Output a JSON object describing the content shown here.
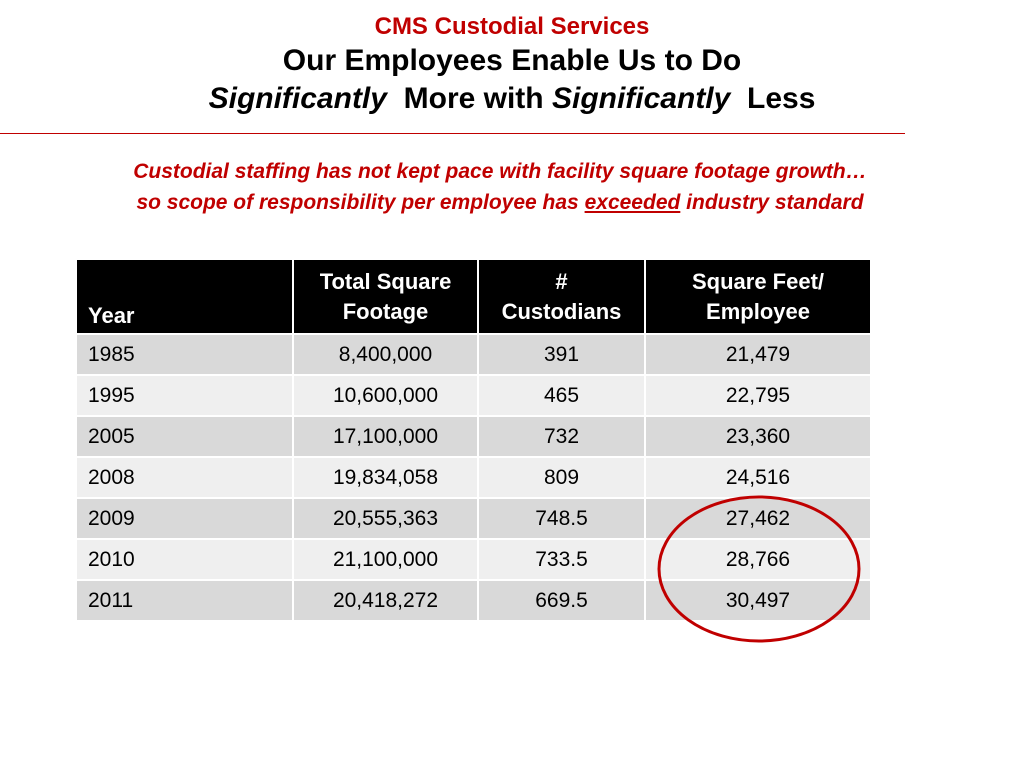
{
  "header": {
    "org_title": "CMS Custodial Services",
    "title_line1": "Our Employees Enable Us to Do",
    "title_line2_em1": "Significantly",
    "title_line2_mid": "More with",
    "title_line2_em2": "Significantly",
    "title_line2_end": "Less"
  },
  "subtitle": {
    "line1": "Custodial staffing has not kept pace with facility square footage growth…",
    "line2_before": "so scope of responsibility per employee has",
    "line2_underlined": "exceeded",
    "line2_after": "industry standard"
  },
  "colors": {
    "accent_red": "#c00000",
    "header_bg": "#000000",
    "row_dark": "#d9d9d9",
    "row_light": "#efefef"
  },
  "table": {
    "headers": [
      {
        "line1": "Year",
        "line2": ""
      },
      {
        "line1": "Total Square",
        "line2": "Footage"
      },
      {
        "line1": "#",
        "line2": "Custodians"
      },
      {
        "line1": "Square Feet/",
        "line2": "Employee"
      }
    ],
    "rows": [
      [
        "1985",
        "8,400,000",
        "391",
        "21,479"
      ],
      [
        "1995",
        "10,600,000",
        "465",
        "22,795"
      ],
      [
        "2005",
        "17,100,000",
        "732",
        "23,360"
      ],
      [
        "2008",
        "19,834,058",
        "809",
        "24,516"
      ],
      [
        "2009",
        "20,555,363",
        "748.5",
        "27,462"
      ],
      [
        "2010",
        "21,100,000",
        "733.5",
        "28,766"
      ],
      [
        "2011",
        "20,418,272",
        "669.5",
        "30,497"
      ]
    ],
    "highlighted_rows": [
      "2009",
      "2010",
      "2011"
    ],
    "highlighted_column": "Square Feet/ Employee"
  }
}
